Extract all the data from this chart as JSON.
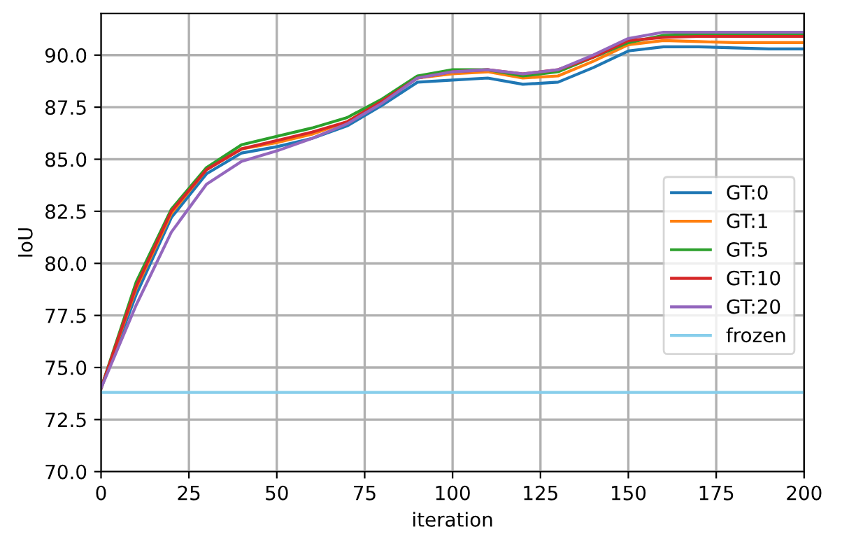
{
  "chart_data": {
    "type": "line",
    "xlabel": "iteration",
    "ylabel": "IoU",
    "x": [
      0,
      10,
      20,
      30,
      40,
      50,
      60,
      70,
      80,
      90,
      100,
      110,
      120,
      130,
      140,
      150,
      160,
      170,
      180,
      190,
      200
    ],
    "xlim": [
      0,
      200
    ],
    "xticks": [
      0,
      25,
      50,
      75,
      100,
      125,
      150,
      175,
      200
    ],
    "ylim": [
      70,
      92
    ],
    "yticks": [
      {
        "value": 70,
        "label": "70.0"
      },
      72.5,
      {
        "value": 75,
        "label": "75.0"
      },
      77.5,
      {
        "value": 80,
        "label": "80.0"
      },
      82.5,
      {
        "value": 85,
        "label": "85.0"
      },
      87.5,
      {
        "value": 90,
        "label": "90.0"
      }
    ],
    "grid": true,
    "legend": "right",
    "series": [
      {
        "name": "GT:0",
        "color": "#1f77b4",
        "values": [
          74,
          78.5,
          82.2,
          84.3,
          85.3,
          85.6,
          86.0,
          86.6,
          87.6,
          88.7,
          88.8,
          88.9,
          88.6,
          88.7,
          89.4,
          90.2,
          90.4,
          90.4,
          90.35,
          90.3,
          90.3
        ]
      },
      {
        "name": "GT:1",
        "color": "#ff7f0e",
        "values": [
          74,
          78.8,
          82.4,
          84.5,
          85.5,
          85.8,
          86.2,
          86.8,
          87.8,
          88.9,
          89.1,
          89.2,
          88.9,
          89.0,
          89.7,
          90.5,
          90.7,
          90.65,
          90.6,
          90.6,
          90.6
        ]
      },
      {
        "name": "GT:5",
        "color": "#2ca02c",
        "values": [
          74,
          79.1,
          82.6,
          84.6,
          85.7,
          86.1,
          86.5,
          87.0,
          87.9,
          89.0,
          89.3,
          89.3,
          89.0,
          89.2,
          89.9,
          90.6,
          90.95,
          91.0,
          91.0,
          91.0,
          91.0
        ]
      },
      {
        "name": "GT:10",
        "color": "#d62728",
        "values": [
          74,
          78.9,
          82.5,
          84.5,
          85.5,
          85.9,
          86.3,
          86.8,
          87.8,
          88.9,
          89.2,
          89.3,
          89.1,
          89.3,
          89.9,
          90.7,
          90.85,
          90.9,
          90.9,
          90.9,
          90.9
        ]
      },
      {
        "name": "GT:20",
        "color": "#9467bd",
        "values": [
          74,
          78.0,
          81.5,
          83.8,
          84.9,
          85.4,
          86.0,
          86.7,
          87.7,
          88.9,
          89.2,
          89.3,
          89.1,
          89.3,
          90.0,
          90.8,
          91.1,
          91.1,
          91.1,
          91.1,
          91.1
        ]
      },
      {
        "name": "frozen",
        "color": "#87ceeb",
        "values": [
          73.8,
          73.8,
          73.8,
          73.8,
          73.8,
          73.8,
          73.8,
          73.8,
          73.8,
          73.8,
          73.8,
          73.8,
          73.8,
          73.8,
          73.8,
          73.8,
          73.8,
          73.8,
          73.8,
          73.8,
          73.8
        ]
      }
    ]
  }
}
